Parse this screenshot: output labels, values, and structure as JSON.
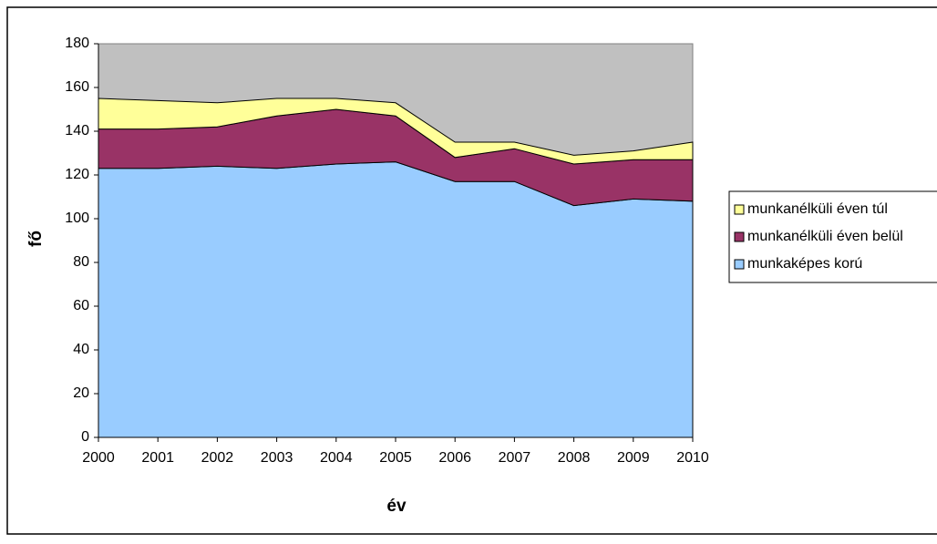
{
  "chart_data": {
    "type": "stacked_area",
    "x_label": "év",
    "y_label": "fő",
    "categories": [
      "2000",
      "2001",
      "2002",
      "2003",
      "2004",
      "2005",
      "2006",
      "2007",
      "2008",
      "2009",
      "2010"
    ],
    "series": [
      {
        "name": "munkaképes korú",
        "color": "#99ccff",
        "values": [
          123,
          123,
          124,
          123,
          125,
          126,
          117,
          117,
          106,
          109,
          108
        ]
      },
      {
        "name": "munkanélküli éven belül",
        "color": "#993366",
        "values": [
          18,
          18,
          18,
          24,
          25,
          21,
          11,
          15,
          19,
          18,
          19
        ]
      },
      {
        "name": "munkanélküli éven túl",
        "color": "#ffff99",
        "values": [
          14,
          13,
          11,
          8,
          5,
          6,
          7,
          3,
          4,
          4,
          8
        ]
      }
    ],
    "ylim": [
      0,
      180
    ],
    "yticks": [
      0,
      20,
      40,
      60,
      80,
      100,
      120,
      140,
      160,
      180
    ],
    "plot_background": "#c0c0c0",
    "legend": "right"
  }
}
